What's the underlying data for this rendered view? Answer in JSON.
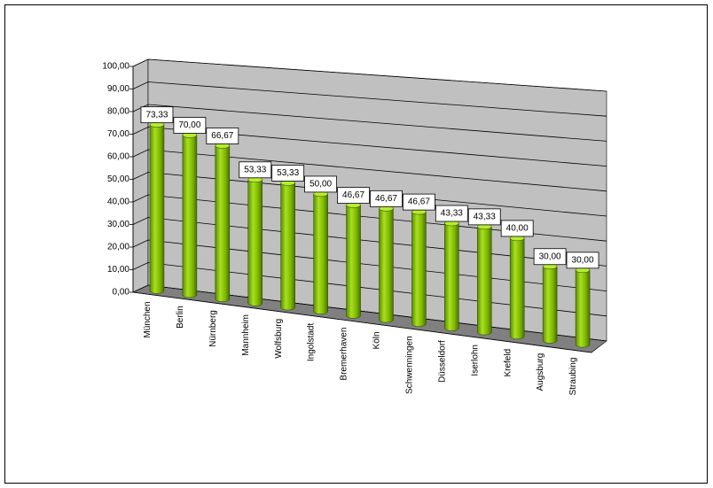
{
  "chart_data": {
    "type": "bar3d",
    "categories": [
      "München",
      "Berlin",
      "Nürnberg",
      "Mannheim",
      "Wolfsburg",
      "Ingolstadt",
      "Bremerhaven",
      "Köln",
      "Schwenningen",
      "Düsseldorf",
      "Iserlohn",
      "Krefeld",
      "Augsburg",
      "Straubing"
    ],
    "values": [
      73.33,
      70,
      66.67,
      53.33,
      53.33,
      50,
      46.67,
      46.67,
      46.67,
      43.33,
      43.33,
      40,
      30,
      30
    ],
    "value_labels": [
      "73,33",
      "70,00",
      "66,67",
      "53,33",
      "53,33",
      "50,00",
      "46,67",
      "46,67",
      "46,67",
      "43,33",
      "43,33",
      "40,00",
      "30,00",
      "30,00"
    ],
    "color": "#8fcc00",
    "ylim": [
      0,
      100
    ],
    "yticks": [
      {
        "value": 0,
        "label": "0,00"
      },
      {
        "value": 10,
        "label": "10,00"
      },
      {
        "value": 20,
        "label": "20,00"
      },
      {
        "value": 30,
        "label": "30,00"
      },
      {
        "value": 40,
        "label": "40,00"
      },
      {
        "value": 50,
        "label": "50,00"
      },
      {
        "value": 60,
        "label": "60,00"
      },
      {
        "value": 70,
        "label": "70,00"
      },
      {
        "value": 80,
        "label": "80,00"
      },
      {
        "value": 90,
        "label": "90,00"
      },
      {
        "value": 100,
        "label": "100,00"
      }
    ],
    "grid": true
  }
}
